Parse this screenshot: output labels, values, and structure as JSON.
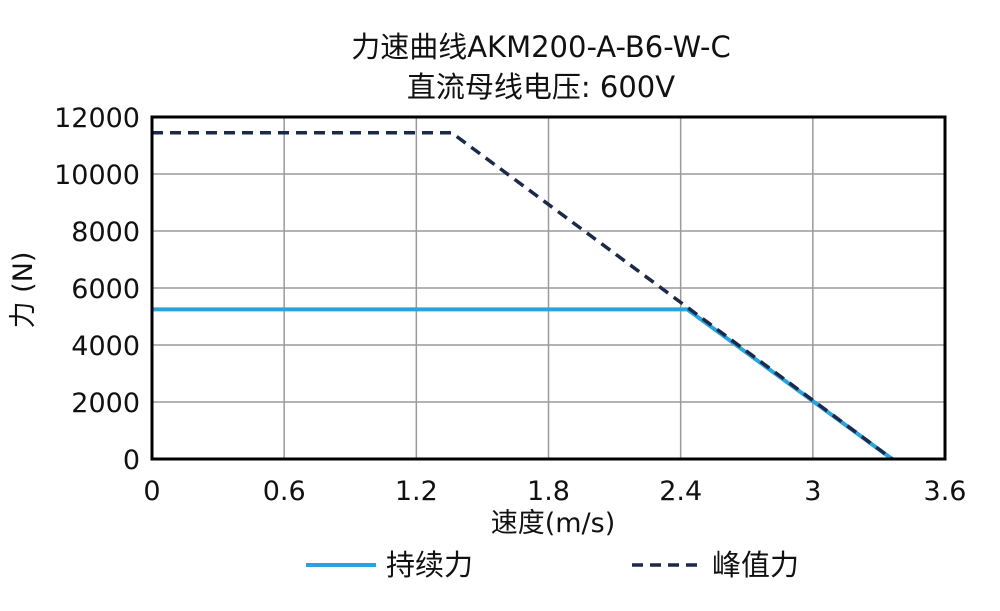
{
  "chart_data": {
    "type": "line",
    "title": "力速曲线AKM200-A-B6-W-C",
    "subtitle": "直流母线电压: 600V",
    "xlabel": "速度(m/s)",
    "ylabel": "力 (N)",
    "xlim": [
      0,
      3.6
    ],
    "ylim": [
      0,
      12000
    ],
    "x_ticks": [
      0,
      0.6,
      1.2,
      1.8,
      2.4,
      3,
      3.6
    ],
    "x_tick_labels": [
      "0",
      "0.6",
      "1.2",
      "1.8",
      "2.4",
      "3",
      "3.6"
    ],
    "y_ticks": [
      0,
      2000,
      4000,
      6000,
      8000,
      10000,
      12000
    ],
    "y_tick_labels": [
      "0",
      "2000",
      "4000",
      "6000",
      "8000",
      "10000",
      "12000"
    ],
    "grid": true,
    "legend_position": "bottom",
    "series": [
      {
        "name": "持续力",
        "color": "#29a3dc",
        "dash": "solid",
        "points": [
          [
            0,
            5250
          ],
          [
            2.43,
            5250
          ],
          [
            3.36,
            0
          ]
        ]
      },
      {
        "name": "峰值力",
        "color": "#1b2a4a",
        "dash": "dashed",
        "points": [
          [
            0,
            11450
          ],
          [
            1.36,
            11450
          ],
          [
            3.36,
            0
          ]
        ]
      }
    ]
  }
}
